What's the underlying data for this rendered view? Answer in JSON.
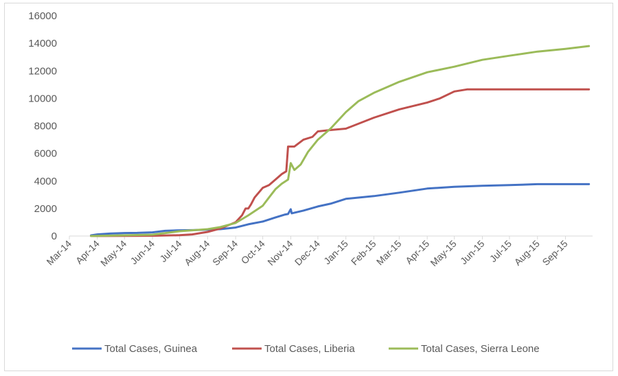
{
  "chart_data": {
    "type": "line",
    "title": "",
    "xlabel": "",
    "ylabel": "",
    "ylim": [
      0,
      16000
    ],
    "yticks": [
      "0",
      "2000",
      "4000",
      "6000",
      "8000",
      "10000",
      "12000",
      "14000",
      "16000"
    ],
    "xlim": [
      "2014-03-01",
      "2015-10-01"
    ],
    "xticks": [
      "Mar-14",
      "Apr-14",
      "May-14",
      "Jun-14",
      "Jul-14",
      "Aug-14",
      "Sep-14",
      "Oct-14",
      "Nov-14",
      "Dec-14",
      "Jan-15",
      "Feb-15",
      "Mar-15",
      "Apr-15",
      "May-15",
      "Jun-15",
      "Jul-15",
      "Aug-15",
      "Sep-15"
    ],
    "grid": false,
    "legend_position": "bottom",
    "series": [
      {
        "name": "Total Cases, Guinea",
        "color": "#4472c4",
        "points": [
          [
            "2014-03-25",
            50
          ],
          [
            "2014-04-01",
            120
          ],
          [
            "2014-04-15",
            180
          ],
          [
            "2014-05-01",
            220
          ],
          [
            "2014-05-15",
            230
          ],
          [
            "2014-06-01",
            270
          ],
          [
            "2014-06-15",
            380
          ],
          [
            "2014-07-01",
            420
          ],
          [
            "2014-07-15",
            430
          ],
          [
            "2014-08-01",
            460
          ],
          [
            "2014-08-15",
            500
          ],
          [
            "2014-09-01",
            620
          ],
          [
            "2014-09-15",
            850
          ],
          [
            "2014-10-01",
            1050
          ],
          [
            "2014-10-15",
            1350
          ],
          [
            "2014-10-25",
            1550
          ],
          [
            "2014-10-29",
            1600
          ],
          [
            "2014-11-01",
            1950
          ],
          [
            "2014-11-02",
            1650
          ],
          [
            "2014-11-15",
            1850
          ],
          [
            "2014-12-01",
            2150
          ],
          [
            "2014-12-15",
            2350
          ],
          [
            "2015-01-01",
            2700
          ],
          [
            "2015-02-01",
            2900
          ],
          [
            "2015-03-01",
            3150
          ],
          [
            "2015-04-01",
            3450
          ],
          [
            "2015-05-01",
            3580
          ],
          [
            "2015-06-01",
            3650
          ],
          [
            "2015-07-01",
            3700
          ],
          [
            "2015-08-01",
            3770
          ],
          [
            "2015-09-01",
            3770
          ],
          [
            "2015-09-27",
            3770
          ]
        ]
      },
      {
        "name": "Total Cases, Liberia",
        "color": "#c0504d",
        "points": [
          [
            "2014-03-25",
            0
          ],
          [
            "2014-06-01",
            20
          ],
          [
            "2014-07-01",
            60
          ],
          [
            "2014-07-15",
            120
          ],
          [
            "2014-08-01",
            300
          ],
          [
            "2014-08-15",
            550
          ],
          [
            "2014-09-01",
            1000
          ],
          [
            "2014-09-08",
            1500
          ],
          [
            "2014-09-12",
            2000
          ],
          [
            "2014-09-15",
            2000
          ],
          [
            "2014-09-18",
            2300
          ],
          [
            "2014-09-22",
            2800
          ],
          [
            "2014-10-01",
            3500
          ],
          [
            "2014-10-08",
            3700
          ],
          [
            "2014-10-15",
            4100
          ],
          [
            "2014-10-22",
            4500
          ],
          [
            "2014-10-27",
            4700
          ],
          [
            "2014-10-29",
            6500
          ],
          [
            "2014-11-05",
            6500
          ],
          [
            "2014-11-15",
            7000
          ],
          [
            "2014-11-25",
            7200
          ],
          [
            "2014-12-01",
            7600
          ],
          [
            "2014-12-15",
            7700
          ],
          [
            "2015-01-01",
            7800
          ],
          [
            "2015-02-01",
            8600
          ],
          [
            "2015-03-01",
            9200
          ],
          [
            "2015-04-01",
            9700
          ],
          [
            "2015-04-15",
            10000
          ],
          [
            "2015-05-01",
            10500
          ],
          [
            "2015-05-15",
            10650
          ],
          [
            "2015-06-01",
            10650
          ],
          [
            "2015-07-01",
            10650
          ],
          [
            "2015-08-01",
            10650
          ],
          [
            "2015-09-27",
            10650
          ]
        ]
      },
      {
        "name": "Total Cases, Sierra Leone",
        "color": "#9bbb59",
        "points": [
          [
            "2014-03-25",
            0
          ],
          [
            "2014-06-01",
            100
          ],
          [
            "2014-07-01",
            350
          ],
          [
            "2014-08-01",
            500
          ],
          [
            "2014-08-15",
            650
          ],
          [
            "2014-09-01",
            950
          ],
          [
            "2014-09-15",
            1500
          ],
          [
            "2014-10-01",
            2200
          ],
          [
            "2014-10-08",
            2800
          ],
          [
            "2014-10-15",
            3400
          ],
          [
            "2014-10-22",
            3800
          ],
          [
            "2014-10-29",
            4100
          ],
          [
            "2014-11-01",
            5300
          ],
          [
            "2014-11-05",
            4800
          ],
          [
            "2014-11-12",
            5200
          ],
          [
            "2014-11-20",
            6100
          ],
          [
            "2014-12-01",
            7000
          ],
          [
            "2014-12-15",
            7800
          ],
          [
            "2015-01-01",
            9000
          ],
          [
            "2015-01-15",
            9800
          ],
          [
            "2015-02-01",
            10400
          ],
          [
            "2015-03-01",
            11200
          ],
          [
            "2015-04-01",
            11900
          ],
          [
            "2015-05-01",
            12300
          ],
          [
            "2015-06-01",
            12800
          ],
          [
            "2015-07-01",
            13100
          ],
          [
            "2015-08-01",
            13400
          ],
          [
            "2015-09-01",
            13600
          ],
          [
            "2015-09-27",
            13800
          ]
        ]
      }
    ]
  }
}
